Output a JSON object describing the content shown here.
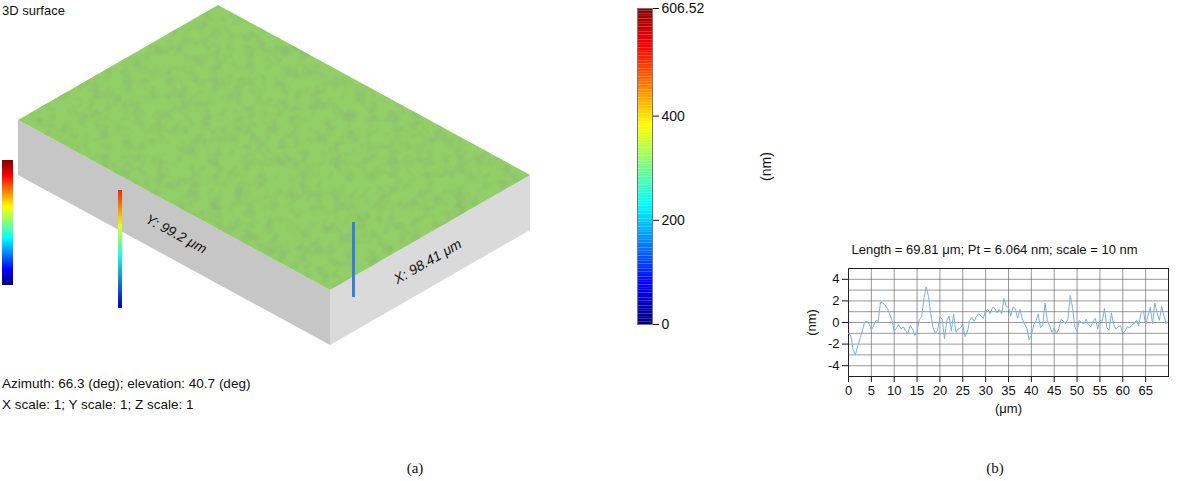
{
  "chart_data": [
    {
      "type": "surface",
      "title": "3D surface",
      "xlabel": "X: 98.41 μm",
      "ylabel": "Y: 99.2 μm",
      "annotations": [
        "Azimuth: 66.3 (deg); elevation: 40.7 (deg)",
        "X scale: 1; Y scale: 1; Z scale: 1"
      ],
      "colorbar": {
        "label": "(nm)",
        "range": [
          0,
          606.52
        ],
        "ticks": [
          0,
          200,
          400,
          606.52
        ]
      },
      "caption": "(a)"
    },
    {
      "type": "line",
      "title": "Length = 69.81 μm; Pt = 6.064 nm; scale = 10 nm",
      "xlabel": "(μm)",
      "ylabel": "(nm)",
      "color": "#7fb0dc",
      "grid": true,
      "xlim": [
        0,
        70
      ],
      "xticks": [
        0,
        5,
        10,
        15,
        20,
        25,
        30,
        35,
        40,
        45,
        50,
        55,
        60,
        65
      ],
      "ylim": [
        -5,
        5
      ],
      "yticks": [
        -4,
        -2,
        0,
        2,
        4
      ],
      "x": [
        0,
        0.5,
        1,
        1.5,
        2,
        2.5,
        3,
        3.5,
        4,
        4.5,
        5,
        5.5,
        6,
        6.5,
        7,
        7.5,
        8,
        8.5,
        9,
        9.5,
        10,
        10.5,
        11,
        11.5,
        12,
        12.5,
        13,
        13.5,
        14,
        14.5,
        15,
        15.5,
        16,
        16.5,
        17,
        17.5,
        18,
        18.5,
        19,
        19.5,
        20,
        20.5,
        21,
        21.5,
        22,
        22.5,
        23,
        23.5,
        24,
        24.5,
        25,
        25.5,
        26,
        26.5,
        27,
        27.5,
        28,
        28.5,
        29,
        29.5,
        30,
        30.5,
        31,
        31.5,
        32,
        32.5,
        33,
        33.5,
        34,
        34.5,
        35,
        35.5,
        36,
        36.5,
        37,
        37.5,
        38,
        38.5,
        39,
        39.5,
        40,
        40.5,
        41,
        41.5,
        42,
        42.5,
        43,
        43.5,
        44,
        44.5,
        45,
        45.5,
        46,
        46.5,
        47,
        47.5,
        48,
        48.5,
        49,
        49.5,
        50,
        50.5,
        51,
        51.5,
        52,
        52.5,
        53,
        53.5,
        54,
        54.5,
        55,
        55.5,
        56,
        56.5,
        57,
        57.5,
        58,
        58.5,
        59,
        59.5,
        60,
        60.5,
        61,
        61.5,
        62,
        62.5,
        63,
        63.5,
        64,
        64.5,
        65,
        65.5,
        66,
        66.5,
        67,
        67.5,
        68,
        68.5,
        69,
        69.5
      ],
      "values": [
        -1,
        -1.2,
        -2.5,
        -3,
        -2.2,
        -1.5,
        -0.8,
        0,
        0.1,
        -0.1,
        -0.7,
        -0.3,
        0.2,
        0.1,
        1.9,
        1.8,
        1.6,
        1.3,
        0.8,
        0.2,
        -0.8,
        -0.5,
        -0.2,
        -0.6,
        -0.4,
        -0.8,
        -1,
        -0.3,
        -0.6,
        -1.2,
        -0.8,
        0.3,
        0.5,
        2.2,
        3.3,
        2.4,
        0.8,
        -0.5,
        -1,
        -0.7,
        0.5,
        0.3,
        -1.5,
        0.2,
        0.6,
        -0.8,
        0.8,
        -0.9,
        -0.6,
        -0.5,
        -0.2,
        -1.3,
        -0.9,
        0.2,
        0.5,
        0.1,
        0.6,
        0.8,
        0.6,
        0.4,
        1.1,
        1.2,
        0.8,
        1.4,
        1.3,
        0.9,
        1.2,
        0.8,
        2.2,
        1.5,
        1.4,
        0.6,
        1.4,
        1.3,
        0.4,
        1.2,
        0.4,
        -0.2,
        -0.5,
        -1.6,
        -1.2,
        -0.2,
        0.1,
        0.8,
        -0.5,
        -0.2,
        1.8,
        0.2,
        -0.3,
        -0.9,
        -0.5,
        -1,
        -0.6,
        0.3,
        0.1,
        -0.1,
        0.3,
        2.5,
        1.4,
        -0.4,
        -0.8,
        0.2,
        0,
        -0.1,
        0.3,
        -0.2,
        -0.4,
        0.1,
        0.4,
        -0.6,
        0.2,
        0.1,
        1.3,
        -0.5,
        -0.7,
        0.9,
        -0.2,
        -0.6,
        -0.4,
        -0.3,
        -1,
        -0.8,
        -0.4,
        -0.5,
        -0.2,
        -0.1,
        0.2,
        -0.3,
        0.9,
        1.1,
        -0.2,
        0.6,
        1.4,
        -0.1,
        1.8,
        0.9,
        0.2,
        1.5,
        0.6,
        -0.1
      ],
      "caption": "(b)"
    }
  ]
}
